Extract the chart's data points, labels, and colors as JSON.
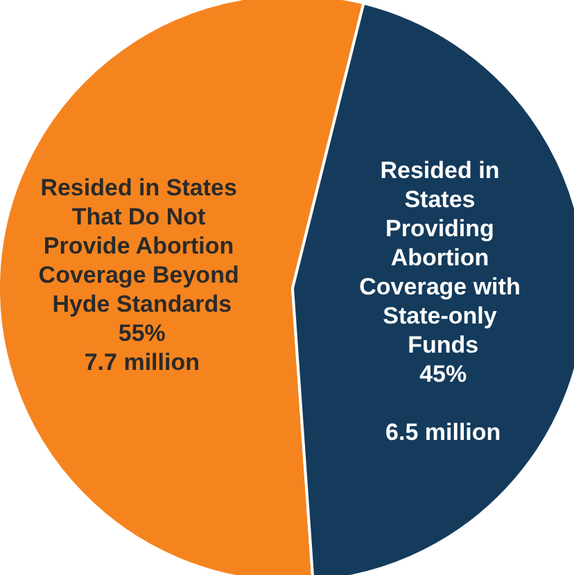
{
  "chart_data": {
    "type": "pie",
    "categories": [
      "Resided in States That Do Not Provide Abortion Coverage Beyond Hyde Standards",
      "Resided in States Providing Abortion Coverage with State-only Funds"
    ],
    "values": [
      55,
      45
    ],
    "colors": [
      "#f5841f",
      "#143b5c"
    ],
    "value_labels": [
      "55%\n7.7 million",
      "45%\n\n6.5 million"
    ],
    "legend": false
  }
}
